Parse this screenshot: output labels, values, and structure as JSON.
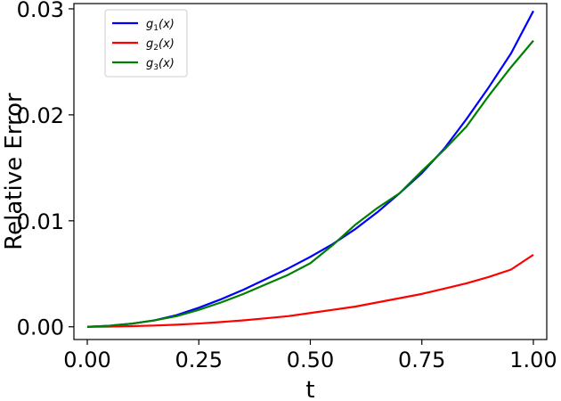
{
  "chart_data": {
    "type": "line",
    "xlabel": "t",
    "ylabel": "Relative Error",
    "xlim": [
      -0.03,
      1.03
    ],
    "ylim": [
      -0.0012,
      0.0305
    ],
    "xticks": [
      0.0,
      0.25,
      0.5,
      0.75,
      1.0
    ],
    "xtick_labels": [
      "0.00",
      "0.25",
      "0.50",
      "0.75",
      "1.00"
    ],
    "yticks": [
      0.0,
      0.01,
      0.02,
      0.03
    ],
    "ytick_labels": [
      "0.00",
      "0.01",
      "0.02",
      "0.03"
    ],
    "grid": false,
    "legend_position": "top-left",
    "series": [
      {
        "name": "g₁(x)",
        "legend_base": "g",
        "legend_sub": "1",
        "legend_arg": "(x)",
        "color": "#0000ff",
        "x": [
          0.0,
          0.05,
          0.1,
          0.15,
          0.2,
          0.25,
          0.3,
          0.35,
          0.4,
          0.45,
          0.5,
          0.55,
          0.6,
          0.65,
          0.7,
          0.75,
          0.8,
          0.85,
          0.9,
          0.95,
          1.0
        ],
        "y": [
          0.0,
          0.0001,
          0.0003,
          0.0006,
          0.0011,
          0.0018,
          0.0026,
          0.0035,
          0.0045,
          0.0055,
          0.0066,
          0.0078,
          0.0092,
          0.0108,
          0.0126,
          0.0145,
          0.0168,
          0.0196,
          0.0226,
          0.0258,
          0.0298
        ]
      },
      {
        "name": "g₂(x)",
        "legend_base": "g",
        "legend_sub": "2",
        "legend_arg": "(x)",
        "color": "#ff0000",
        "x": [
          0.0,
          0.05,
          0.1,
          0.15,
          0.2,
          0.25,
          0.3,
          0.35,
          0.4,
          0.45,
          0.5,
          0.55,
          0.6,
          0.65,
          0.7,
          0.75,
          0.8,
          0.85,
          0.9,
          0.95,
          1.0
        ],
        "y": [
          0.0,
          2e-05,
          6e-05,
          0.00012,
          0.0002,
          0.00031,
          0.00045,
          0.00061,
          0.0008,
          0.001,
          0.0013,
          0.0016,
          0.0019,
          0.0023,
          0.0027,
          0.0031,
          0.0036,
          0.0041,
          0.0047,
          0.0054,
          0.0068
        ]
      },
      {
        "name": "g₃(x)",
        "legend_base": "g",
        "legend_sub": "3",
        "legend_arg": "(x)",
        "color": "#008000",
        "x": [
          0.0,
          0.05,
          0.1,
          0.15,
          0.2,
          0.25,
          0.3,
          0.35,
          0.4,
          0.45,
          0.5,
          0.55,
          0.6,
          0.65,
          0.7,
          0.75,
          0.8,
          0.85,
          0.9,
          0.95,
          1.0
        ],
        "y": [
          0.0,
          0.0001,
          0.0003,
          0.0006,
          0.001,
          0.0016,
          0.0023,
          0.0031,
          0.004,
          0.0049,
          0.006,
          0.0077,
          0.0096,
          0.0112,
          0.0126,
          0.0147,
          0.0167,
          0.0189,
          0.0218,
          0.0245,
          0.027
        ]
      }
    ]
  }
}
